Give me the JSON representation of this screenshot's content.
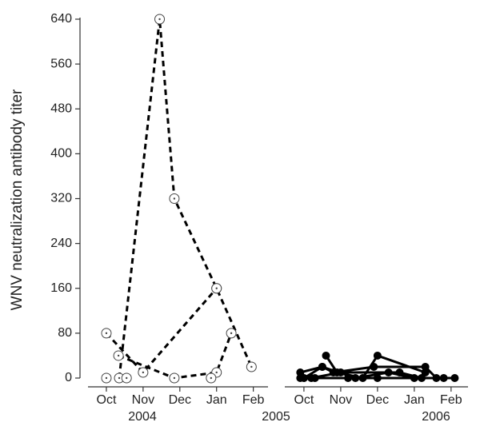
{
  "chart_data": {
    "type": "line",
    "ylabel": "WNV neutralization antibody titer",
    "ylim": [
      0,
      640
    ],
    "yticks": [
      0,
      80,
      160,
      240,
      320,
      400,
      480,
      560,
      640
    ],
    "year_labels": [
      "2004",
      "2005",
      "2006"
    ],
    "panels": [
      {
        "line_style": "dashed",
        "marker_fill": "open",
        "color": "#000000",
        "xlim": [
          -0.5,
          4.4
        ],
        "xticks": [
          {
            "value": 0,
            "label": "Oct"
          },
          {
            "value": 1,
            "label": "Nov"
          },
          {
            "value": 2,
            "label": "Dec"
          },
          {
            "value": 3,
            "label": "Jan"
          },
          {
            "value": 4,
            "label": "Feb"
          }
        ],
        "series": [
          {
            "x": [
              0.35,
              1.45,
              1.85,
              3.0,
              3.95
            ],
            "values": [
              0,
              640,
              320,
              160,
              20
            ]
          },
          {
            "x": [
              0,
              1.0,
              3.0
            ],
            "values": [
              80,
              10,
              160
            ]
          },
          {
            "x": [
              0.33,
              1.85,
              3.0,
              3.4
            ],
            "values": [
              40,
              0,
              10,
              80
            ]
          },
          {
            "x": [
              0
            ],
            "values": [
              0
            ]
          },
          {
            "x": [
              0.55
            ],
            "values": [
              0
            ]
          },
          {
            "x": [
              2.85
            ],
            "values": [
              0
            ]
          }
        ]
      },
      {
        "line_style": "solid",
        "marker_fill": "filled",
        "color": "#000000",
        "xlim": [
          -0.52,
          4.46
        ],
        "xticks": [
          {
            "value": 0,
            "label": "Oct"
          },
          {
            "value": 1,
            "label": "Nov"
          },
          {
            "value": 2,
            "label": "Dec"
          },
          {
            "value": 3,
            "label": "Jan"
          },
          {
            "value": 4,
            "label": "Feb"
          }
        ],
        "series": [
          {
            "x": [
              0.6,
              0.9,
              1.6,
              2.0,
              3.3
            ],
            "values": [
              40,
              10,
              0,
              40,
              10
            ]
          },
          {
            "x": [
              -0.1,
              0.5,
              0.8,
              1.9,
              3.3,
              3.6
            ],
            "values": [
              10,
              20,
              10,
              20,
              20,
              0
            ]
          },
          {
            "x": [
              0,
              0.5,
              1.4,
              2.3,
              3.0,
              3.8
            ],
            "values": [
              0,
              20,
              0,
              10,
              0,
              0
            ]
          },
          {
            "x": [
              -0.1,
              0.2,
              1.0,
              2.6,
              3.2
            ],
            "values": [
              0,
              0,
              10,
              10,
              0
            ]
          },
          {
            "x": [
              0.3,
              1.2,
              2.0,
              4.1
            ],
            "values": [
              0,
              0,
              0,
              0
            ]
          }
        ]
      }
    ]
  }
}
